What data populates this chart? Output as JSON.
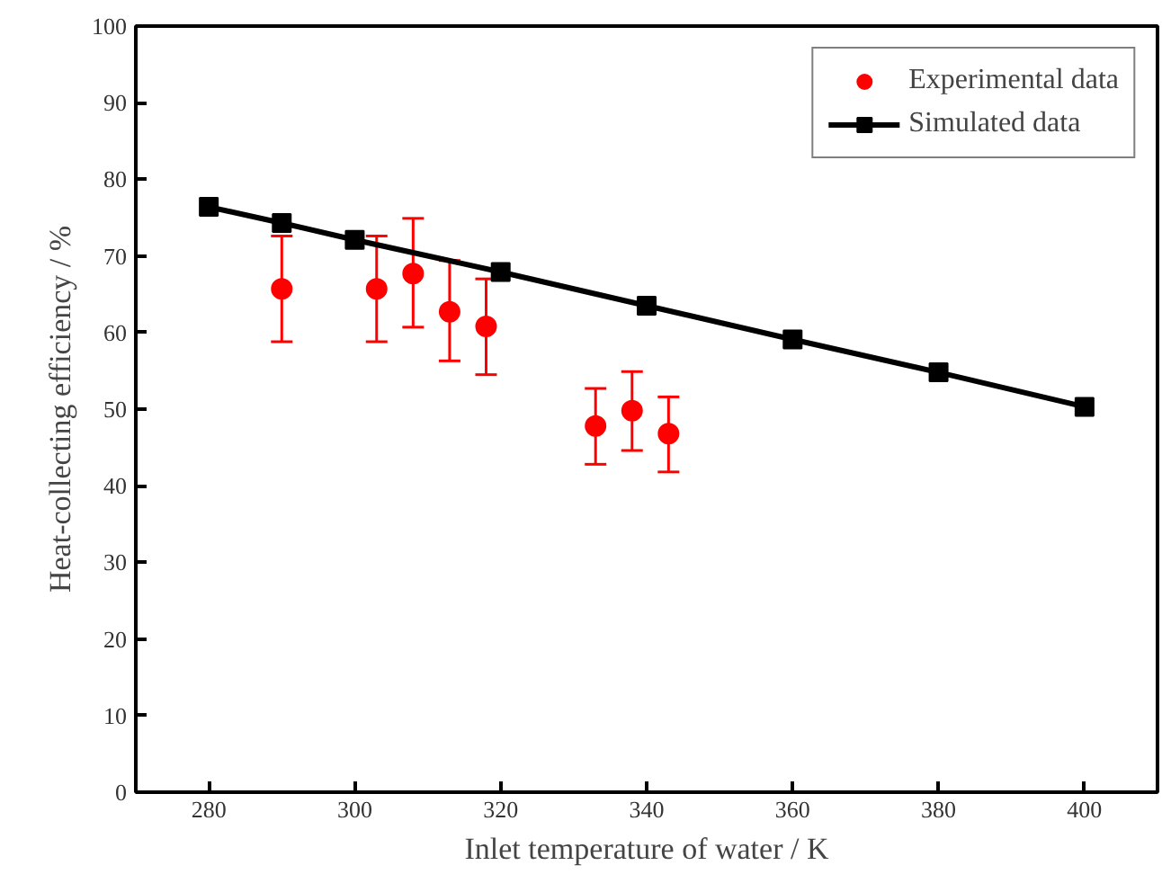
{
  "chart_data": {
    "type": "scatter",
    "xlabel": "Inlet temperature of water / K",
    "ylabel": "Heat-collecting efficiency / %",
    "xlim": [
      270,
      410
    ],
    "xticks": [
      280,
      300,
      320,
      340,
      360,
      380,
      400
    ],
    "ylim": [
      0,
      100
    ],
    "yticks": [
      0,
      10,
      20,
      30,
      40,
      50,
      60,
      70,
      80,
      90,
      100
    ],
    "grid": false,
    "legend": "top right",
    "series": [
      {
        "name": "Experimental data",
        "marker": "circle",
        "color": "#ff0000",
        "x": [
          290,
          303,
          308,
          313,
          318,
          333,
          338,
          343
        ],
        "values": [
          65.7,
          65.7,
          67.7,
          62.7,
          60.8,
          47.8,
          49.8,
          46.8
        ],
        "errors": [
          [
            58.8,
            72.6
          ],
          [
            58.8,
            72.6
          ],
          [
            60.7,
            74.9
          ],
          [
            56.3,
            69.4
          ],
          [
            54.5,
            67
          ],
          [
            42.8,
            52.7
          ],
          [
            44.6,
            54.9
          ],
          [
            41.8,
            51.6
          ]
        ]
      },
      {
        "name": "Simulated data",
        "type": "line",
        "marker": "square",
        "line_style": "solid",
        "color": "#000000",
        "x": [
          280,
          290,
          300,
          320,
          340,
          360,
          380,
          400
        ],
        "values": [
          76.4,
          74.3,
          72.1,
          67.9,
          63.5,
          59.1,
          54.8,
          50.3
        ]
      }
    ]
  }
}
